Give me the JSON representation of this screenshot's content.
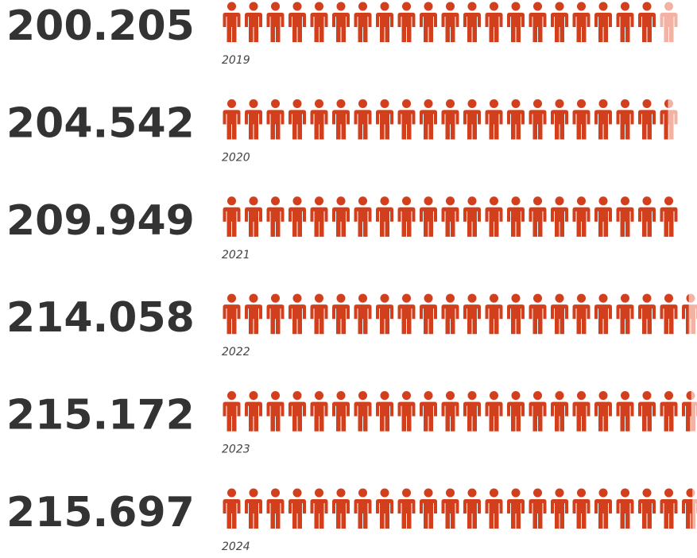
{
  "chart_data": {
    "type": "pictogram",
    "categories": [
      "2019",
      "2020",
      "2021",
      "2022",
      "2023",
      "2024"
    ],
    "values": [
      200205,
      204542,
      209949,
      214058,
      215172,
      215697
    ],
    "value_labels": [
      "200.205",
      "204.542",
      "209.949",
      "214.058",
      "215.172",
      "215.697"
    ],
    "color": "#d23f1d",
    "xlim": [
      0,
      220000
    ]
  }
}
